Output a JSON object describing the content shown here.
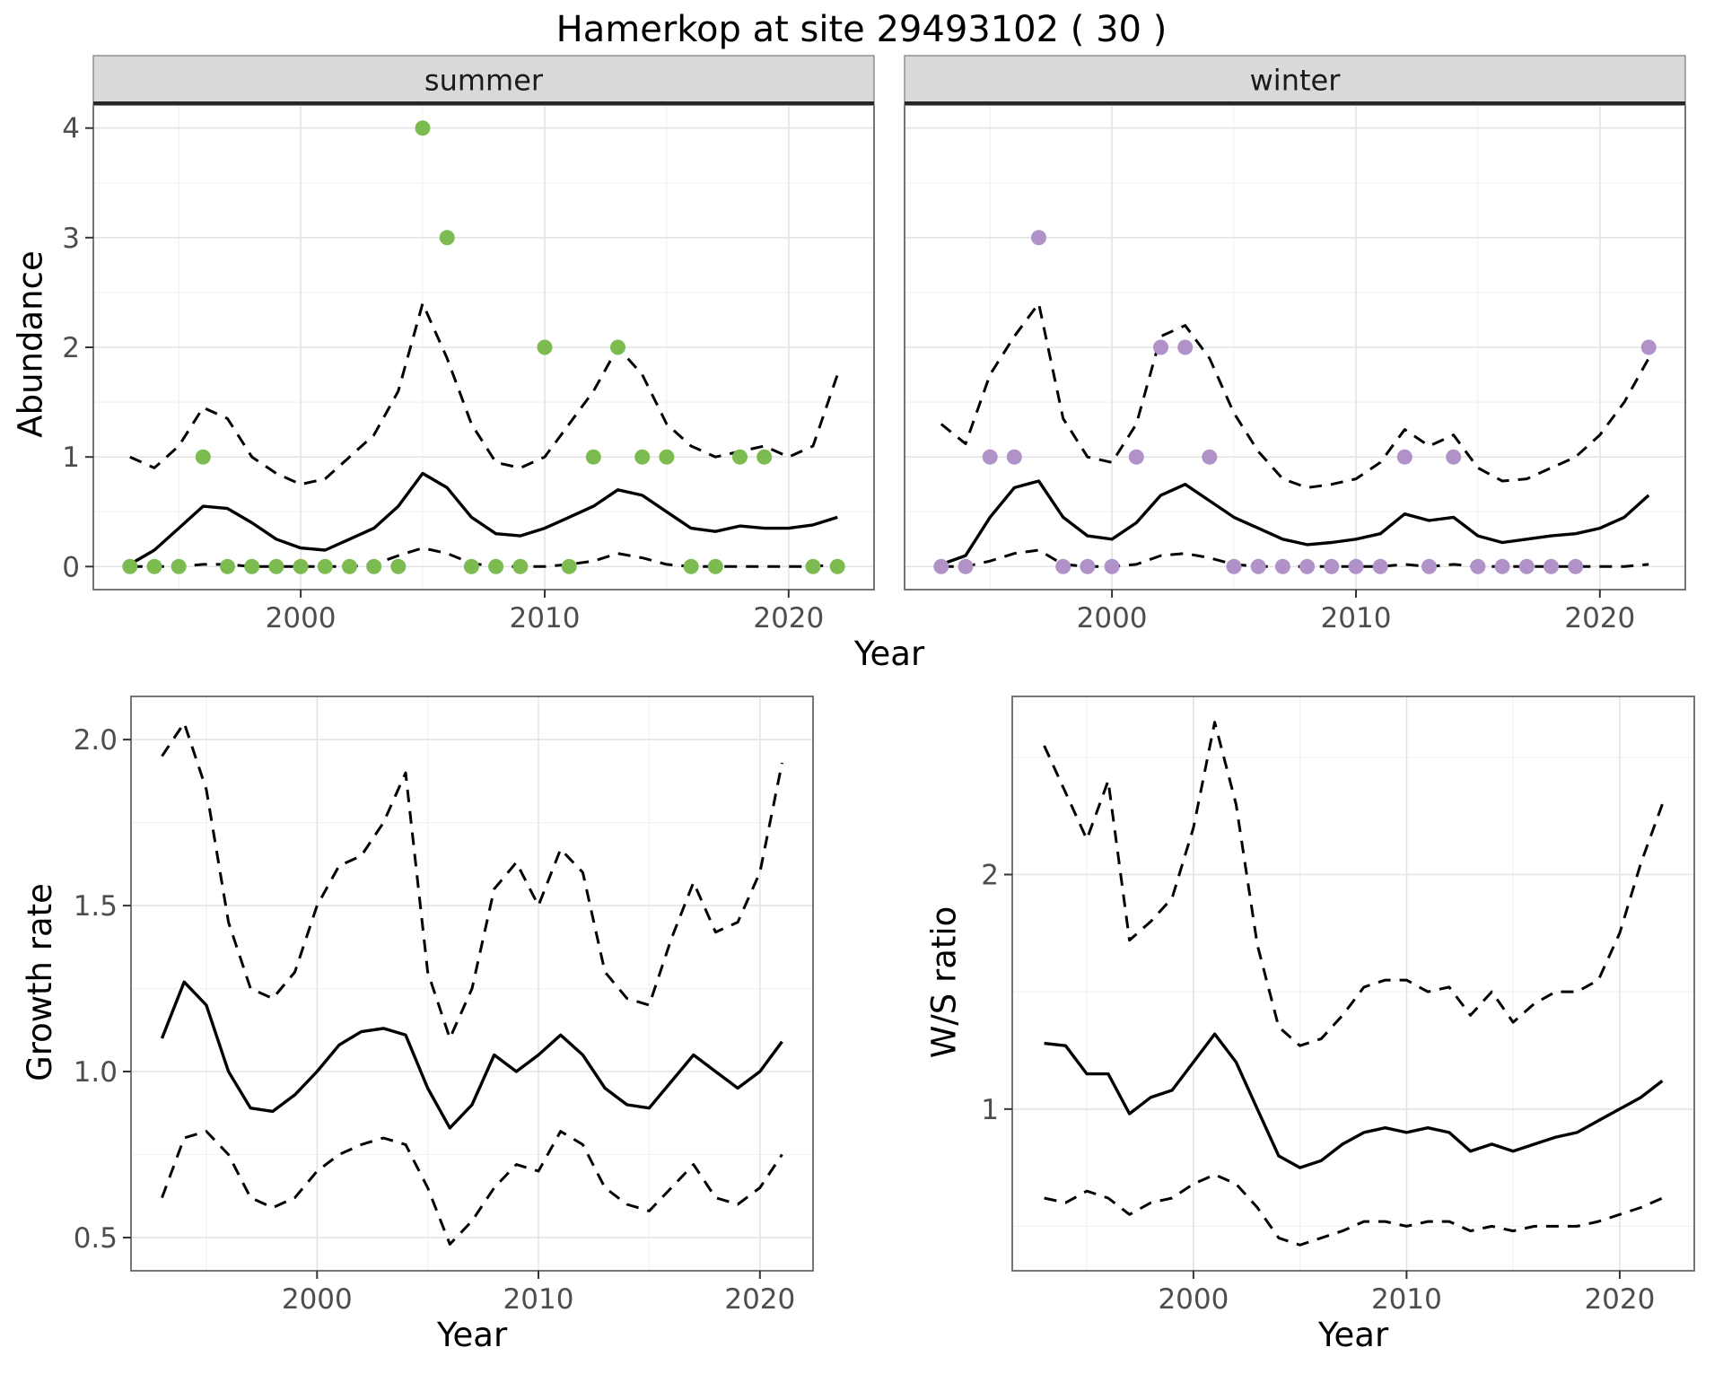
{
  "title": "Hamerkop at site 29493102 ( 30 )",
  "axes": {
    "abundance_label": "Abundance",
    "year_label": "Year",
    "growth_label": "Growth rate",
    "ws_label": "W/S ratio"
  },
  "colors": {
    "line": "#000000",
    "summer_point": "#7cbb4f",
    "winter_point": "#b192c8",
    "panel_bg": "#ffffff",
    "panel_border": "#666666",
    "grid_major": "#e4e4e4",
    "grid_minor": "#f2f2f2",
    "strip_bg": "#d9d9d9",
    "strip_border": "#8c8c8c",
    "strip_underline": "#262626",
    "strip_text": "#1a1a1a",
    "tick": "#333333",
    "tick_text": "#4d4d4d"
  },
  "chart_data": [
    {
      "id": "summer",
      "type": "line+scatter",
      "facet": "summer",
      "xlabel": "Year",
      "ylabel": "Abundance",
      "xlim": [
        1991.5,
        2023.5
      ],
      "ylim": [
        -0.21,
        4.21
      ],
      "xticks": [
        2000,
        2010,
        2020
      ],
      "xtick_labels": [
        "2000",
        "2010",
        "2020"
      ],
      "yticks": [
        0,
        1,
        2,
        3,
        4
      ],
      "ytick_labels": [
        "0",
        "1",
        "2",
        "3",
        "4"
      ],
      "x_minor": [
        1995,
        2005,
        2015
      ],
      "y_minor": [
        0.5,
        1.5,
        2.5,
        3.5
      ],
      "x": [
        1993,
        1994,
        1995,
        1996,
        1997,
        1998,
        1999,
        2000,
        2001,
        2002,
        2003,
        2004,
        2005,
        2006,
        2007,
        2008,
        2009,
        2010,
        2011,
        2012,
        2013,
        2014,
        2015,
        2016,
        2017,
        2018,
        2019,
        2020,
        2021,
        2022
      ],
      "points": {
        "name": "summer-observed-point",
        "color": "#7cbb4f",
        "values": [
          0,
          0,
          0,
          1,
          0,
          0,
          0,
          0,
          0,
          0,
          0,
          0,
          4,
          3,
          0,
          0,
          0,
          2,
          0,
          1,
          2,
          1,
          1,
          0,
          0,
          1,
          1,
          null,
          0,
          0
        ]
      },
      "series": [
        {
          "name": "ci-lower-line",
          "style": "dashed",
          "values": [
            0,
            0,
            0,
            0.02,
            0.02,
            0,
            0,
            0,
            0,
            0,
            0.02,
            0.1,
            0.17,
            0.12,
            0.03,
            0,
            0,
            0,
            0.02,
            0.05,
            0.12,
            0.08,
            0.02,
            0,
            0,
            0,
            0,
            0,
            0,
            0.02
          ]
        },
        {
          "name": "ci-upper-line",
          "style": "dashed",
          "values": [
            1.0,
            0.9,
            1.1,
            1.45,
            1.35,
            1.0,
            0.85,
            0.75,
            0.8,
            1.0,
            1.2,
            1.6,
            2.4,
            1.9,
            1.3,
            0.95,
            0.9,
            1.0,
            1.3,
            1.6,
            2.0,
            1.75,
            1.3,
            1.1,
            1.0,
            1.05,
            1.1,
            1.0,
            1.1,
            1.75
          ]
        },
        {
          "name": "mean-line",
          "style": "solid",
          "values": [
            0.02,
            0.15,
            0.35,
            0.55,
            0.53,
            0.4,
            0.25,
            0.17,
            0.15,
            0.25,
            0.35,
            0.55,
            0.85,
            0.72,
            0.45,
            0.3,
            0.28,
            0.35,
            0.45,
            0.55,
            0.7,
            0.65,
            0.5,
            0.35,
            0.32,
            0.37,
            0.35,
            0.35,
            0.38,
            0.45
          ]
        }
      ]
    },
    {
      "id": "winter",
      "type": "line+scatter",
      "facet": "winter",
      "xlabel": "Year",
      "ylabel": "Abundance",
      "xlim": [
        1991.5,
        2023.5
      ],
      "ylim": [
        -0.21,
        4.21
      ],
      "xticks": [
        2000,
        2010,
        2020
      ],
      "xtick_labels": [
        "2000",
        "2010",
        "2020"
      ],
      "yticks": [
        0,
        1,
        2,
        3,
        4
      ],
      "ytick_labels": [
        "0",
        "1",
        "2",
        "3",
        "4"
      ],
      "x_minor": [
        1995,
        2005,
        2015
      ],
      "y_minor": [
        0.5,
        1.5,
        2.5,
        3.5
      ],
      "x": [
        1993,
        1994,
        1995,
        1996,
        1997,
        1998,
        1999,
        2000,
        2001,
        2002,
        2003,
        2004,
        2005,
        2006,
        2007,
        2008,
        2009,
        2010,
        2011,
        2012,
        2013,
        2014,
        2015,
        2016,
        2017,
        2018,
        2019,
        2020,
        2021,
        2022
      ],
      "points": {
        "name": "winter-observed-point",
        "color": "#b192c8",
        "values": [
          0,
          0,
          1,
          1,
          3,
          0,
          0,
          0,
          1,
          2,
          2,
          1,
          0,
          0,
          0,
          0,
          0,
          0,
          0,
          1,
          0,
          1,
          0,
          0,
          0,
          0,
          0,
          null,
          null,
          2
        ]
      },
      "series": [
        {
          "name": "ci-lower-line",
          "style": "dashed",
          "values": [
            0,
            0,
            0.05,
            0.12,
            0.15,
            0.02,
            0,
            0,
            0.02,
            0.1,
            0.12,
            0.08,
            0.02,
            0,
            0,
            0,
            0,
            0,
            0,
            0.02,
            0,
            0.02,
            0,
            0,
            0,
            0,
            0,
            0,
            0,
            0.02
          ]
        },
        {
          "name": "ci-upper-line",
          "style": "dashed",
          "values": [
            1.3,
            1.12,
            1.75,
            2.1,
            2.4,
            1.35,
            1.0,
            0.95,
            1.3,
            2.1,
            2.2,
            1.9,
            1.4,
            1.05,
            0.8,
            0.72,
            0.75,
            0.8,
            0.95,
            1.25,
            1.1,
            1.2,
            0.9,
            0.78,
            0.8,
            0.9,
            1.0,
            1.2,
            1.5,
            1.9
          ]
        },
        {
          "name": "mean-line",
          "style": "solid",
          "values": [
            0.02,
            0.1,
            0.45,
            0.72,
            0.78,
            0.45,
            0.28,
            0.25,
            0.4,
            0.65,
            0.75,
            0.6,
            0.45,
            0.35,
            0.25,
            0.2,
            0.22,
            0.25,
            0.3,
            0.48,
            0.42,
            0.45,
            0.28,
            0.22,
            0.25,
            0.28,
            0.3,
            0.35,
            0.45,
            0.65
          ]
        }
      ]
    },
    {
      "id": "growth_rate",
      "type": "line",
      "facet": null,
      "xlabel": "Year",
      "ylabel": "Growth rate",
      "xlim": [
        1991.6,
        2022.4
      ],
      "ylim": [
        0.4,
        2.13
      ],
      "xticks": [
        2000,
        2010,
        2020
      ],
      "xtick_labels": [
        "2000",
        "2010",
        "2020"
      ],
      "yticks": [
        0.5,
        1.0,
        1.5,
        2.0
      ],
      "ytick_labels": [
        "0.5",
        "1.0",
        "1.5",
        "2.0"
      ],
      "x_minor": [
        1995,
        2005,
        2015
      ],
      "y_minor": [
        0.75,
        1.25,
        1.75
      ],
      "x": [
        1993,
        1994,
        1995,
        1996,
        1997,
        1998,
        1999,
        2000,
        2001,
        2002,
        2003,
        2004,
        2005,
        2006,
        2007,
        2008,
        2009,
        2010,
        2011,
        2012,
        2013,
        2014,
        2015,
        2016,
        2017,
        2018,
        2019,
        2020,
        2021
      ],
      "series": [
        {
          "name": "ci-lower-line",
          "style": "dashed",
          "values": [
            0.62,
            0.8,
            0.82,
            0.75,
            0.62,
            0.59,
            0.62,
            0.7,
            0.75,
            0.78,
            0.8,
            0.78,
            0.65,
            0.48,
            0.55,
            0.65,
            0.72,
            0.7,
            0.82,
            0.78,
            0.65,
            0.6,
            0.58,
            0.65,
            0.72,
            0.62,
            0.6,
            0.65,
            0.75
          ]
        },
        {
          "name": "ci-upper-line",
          "style": "dashed",
          "values": [
            1.95,
            2.05,
            1.85,
            1.45,
            1.25,
            1.22,
            1.3,
            1.5,
            1.62,
            1.65,
            1.75,
            1.9,
            1.3,
            1.1,
            1.25,
            1.55,
            1.63,
            1.5,
            1.67,
            1.6,
            1.3,
            1.22,
            1.2,
            1.4,
            1.57,
            1.42,
            1.45,
            1.6,
            1.93
          ]
        },
        {
          "name": "mean-line",
          "style": "solid",
          "values": [
            1.1,
            1.27,
            1.2,
            1.0,
            0.89,
            0.88,
            0.93,
            1.0,
            1.08,
            1.12,
            1.13,
            1.11,
            0.95,
            0.83,
            0.9,
            1.05,
            1.0,
            1.05,
            1.11,
            1.05,
            0.95,
            0.9,
            0.89,
            0.97,
            1.05,
            1.0,
            0.95,
            1.0,
            1.09
          ]
        }
      ]
    },
    {
      "id": "ws_ratio",
      "type": "line",
      "facet": null,
      "xlabel": "Year",
      "ylabel": "W/S ratio",
      "xlim": [
        1991.5,
        2023.5
      ],
      "ylim": [
        0.31,
        2.76
      ],
      "xticks": [
        2000,
        2010,
        2020
      ],
      "xtick_labels": [
        "2000",
        "2010",
        "2020"
      ],
      "yticks": [
        1,
        2
      ],
      "ytick_labels": [
        "1",
        "2"
      ],
      "x_minor": [
        1995,
        2005,
        2015
      ],
      "y_minor": [
        0.5,
        1.5,
        2.5
      ],
      "x": [
        1993,
        1994,
        1995,
        1996,
        1997,
        1998,
        1999,
        2000,
        2001,
        2002,
        2003,
        2004,
        2005,
        2006,
        2007,
        2008,
        2009,
        2010,
        2011,
        2012,
        2013,
        2014,
        2015,
        2016,
        2017,
        2018,
        2019,
        2020,
        2021,
        2022
      ],
      "series": [
        {
          "name": "ci-lower-line",
          "style": "dashed",
          "values": [
            0.62,
            0.6,
            0.65,
            0.62,
            0.55,
            0.6,
            0.62,
            0.68,
            0.72,
            0.68,
            0.58,
            0.45,
            0.42,
            0.45,
            0.48,
            0.52,
            0.52,
            0.5,
            0.52,
            0.52,
            0.48,
            0.5,
            0.48,
            0.5,
            0.5,
            0.5,
            0.52,
            0.55,
            0.58,
            0.62
          ]
        },
        {
          "name": "ci-upper-line",
          "style": "dashed",
          "values": [
            2.55,
            2.35,
            2.15,
            2.4,
            1.72,
            1.8,
            1.9,
            2.2,
            2.65,
            2.3,
            1.7,
            1.35,
            1.27,
            1.3,
            1.4,
            1.52,
            1.55,
            1.55,
            1.5,
            1.52,
            1.4,
            1.5,
            1.37,
            1.45,
            1.5,
            1.5,
            1.55,
            1.75,
            2.05,
            2.3
          ]
        },
        {
          "name": "mean-line",
          "style": "solid",
          "values": [
            1.28,
            1.27,
            1.15,
            1.15,
            0.98,
            1.05,
            1.08,
            1.2,
            1.32,
            1.2,
            1.0,
            0.8,
            0.75,
            0.78,
            0.85,
            0.9,
            0.92,
            0.9,
            0.92,
            0.9,
            0.82,
            0.85,
            0.82,
            0.85,
            0.88,
            0.9,
            0.95,
            1.0,
            1.05,
            1.12
          ]
        }
      ]
    }
  ]
}
